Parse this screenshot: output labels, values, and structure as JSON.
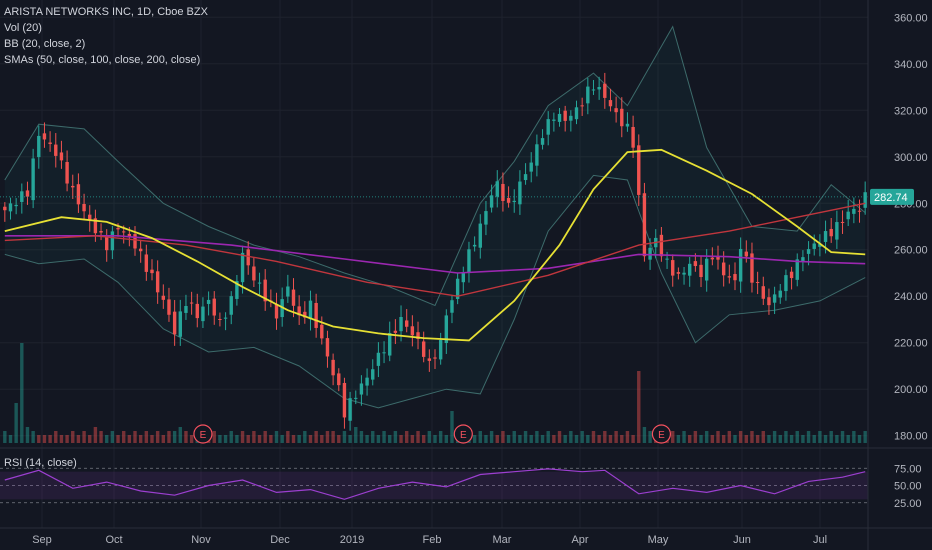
{
  "header": {
    "title": "ARISTA NETWORKS INC, 1D, Cboe BZX",
    "indicators": [
      "Vol (20)",
      "BB (20, close, 2)",
      "SMAs (50, close, 100, close, 200, close)"
    ]
  },
  "rsi": {
    "label": "RSI (14, close)",
    "ticks": [
      "75.00",
      "50.00",
      "25.00"
    ]
  },
  "colors": {
    "background": "#131722",
    "up": "#26a69a",
    "down": "#ef5350",
    "sma50": "#e6e034",
    "sma100": "#c0363d",
    "sma200": "#9b27b0",
    "bb": "#3d6b6b",
    "rsi": "#9c3fd0",
    "earnings": "#f7525f"
  },
  "chart_data": {
    "type": "candlestick",
    "title": "ARISTA NETWORKS INC, 1D, Cboe BZX",
    "x_tick_labels": [
      "Sep",
      "Oct",
      "Nov",
      "Dec",
      "2019",
      "Feb",
      "Mar",
      "Apr",
      "May",
      "Jun",
      "Jul"
    ],
    "y_tick_labels": [
      "360.00",
      "340.00",
      "320.00",
      "300.00",
      "280.00",
      "260.00",
      "240.00",
      "220.00",
      "200.00",
      "180.00"
    ],
    "ylim": [
      176,
      364
    ],
    "last_price": "282.74",
    "close_path": [
      [
        0,
        277
      ],
      [
        4,
        285
      ],
      [
        6,
        310
      ],
      [
        9,
        302
      ],
      [
        12,
        285
      ],
      [
        15,
        272
      ],
      [
        18,
        262
      ],
      [
        20,
        270
      ],
      [
        23,
        262
      ],
      [
        26,
        248
      ],
      [
        28,
        238
      ],
      [
        30,
        225
      ],
      [
        32,
        238
      ],
      [
        34,
        232
      ],
      [
        36,
        238
      ],
      [
        38,
        228
      ],
      [
        40,
        238
      ],
      [
        42,
        258
      ],
      [
        44,
        248
      ],
      [
        46,
        240
      ],
      [
        48,
        232
      ],
      [
        50,
        244
      ],
      [
        52,
        230
      ],
      [
        54,
        236
      ],
      [
        55,
        228
      ],
      [
        57,
        214
      ],
      [
        59,
        200
      ],
      [
        60,
        190
      ],
      [
        62,
        198
      ],
      [
        64,
        205
      ],
      [
        66,
        214
      ],
      [
        68,
        222
      ],
      [
        70,
        230
      ],
      [
        72,
        224
      ],
      [
        74,
        216
      ],
      [
        75,
        210
      ],
      [
        77,
        220
      ],
      [
        78,
        232
      ],
      [
        80,
        246
      ],
      [
        82,
        258
      ],
      [
        84,
        270
      ],
      [
        86,
        284
      ],
      [
        87,
        288
      ],
      [
        89,
        278
      ],
      [
        91,
        288
      ],
      [
        93,
        298
      ],
      [
        95,
        310
      ],
      [
        97,
        318
      ],
      [
        99,
        316
      ],
      [
        101,
        320
      ],
      [
        103,
        328
      ],
      [
        104,
        331
      ],
      [
        106,
        326
      ],
      [
        108,
        318
      ],
      [
        110,
        312
      ],
      [
        111,
        306
      ],
      [
        112,
        282
      ],
      [
        113,
        258
      ],
      [
        115,
        264
      ],
      [
        117,
        254
      ],
      [
        119,
        248
      ],
      [
        121,
        254
      ],
      [
        123,
        250
      ],
      [
        125,
        258
      ],
      [
        127,
        250
      ],
      [
        129,
        246
      ],
      [
        130,
        262
      ],
      [
        132,
        248
      ],
      [
        134,
        240
      ],
      [
        135,
        236
      ],
      [
        137,
        244
      ],
      [
        139,
        250
      ],
      [
        141,
        258
      ],
      [
        143,
        262
      ],
      [
        145,
        266
      ],
      [
        147,
        270
      ],
      [
        149,
        276
      ],
      [
        151,
        278
      ],
      [
        152,
        282.74
      ]
    ],
    "volume": [
      3,
      2,
      10,
      25,
      4,
      3,
      2,
      2,
      2,
      3,
      2,
      2,
      3,
      2,
      3,
      2,
      4,
      3,
      2,
      3,
      2,
      3,
      2,
      3,
      2,
      3,
      2,
      3,
      2,
      3,
      3,
      4,
      3,
      2,
      2,
      3,
      2,
      3,
      2,
      2,
      3,
      2,
      3,
      2,
      3,
      2,
      3,
      2,
      3,
      2,
      3,
      2,
      2,
      3,
      2,
      3,
      2,
      3,
      3,
      2,
      3,
      2,
      4,
      3,
      2,
      3,
      2,
      3,
      2,
      3,
      2,
      3,
      2,
      3,
      2,
      3,
      2,
      3,
      2,
      8,
      3,
      2,
      3,
      2,
      3,
      2,
      3,
      2,
      3,
      2,
      3,
      2,
      3,
      2,
      3,
      2,
      3,
      2,
      3,
      2,
      3,
      2,
      3,
      2,
      3,
      2,
      3,
      2,
      3,
      2,
      3,
      2,
      18,
      4,
      3,
      2,
      3,
      2,
      3,
      2,
      3,
      2,
      3,
      2,
      3,
      2,
      3,
      2,
      3,
      2,
      3,
      2,
      3,
      2,
      3,
      2,
      3,
      2,
      3,
      2,
      3,
      2,
      3,
      2,
      3,
      2,
      3,
      2,
      3,
      2,
      3,
      2,
      3
    ],
    "earnings_bars": [
      35,
      81,
      116
    ],
    "sma50_path": [
      [
        0,
        268
      ],
      [
        10,
        274
      ],
      [
        18,
        272
      ],
      [
        26,
        265
      ],
      [
        34,
        255
      ],
      [
        42,
        244
      ],
      [
        50,
        234
      ],
      [
        58,
        227
      ],
      [
        66,
        224
      ],
      [
        74,
        222
      ],
      [
        82,
        221
      ],
      [
        90,
        238
      ],
      [
        98,
        262
      ],
      [
        104,
        286
      ],
      [
        110,
        302
      ],
      [
        116,
        303
      ],
      [
        124,
        294
      ],
      [
        132,
        284
      ],
      [
        140,
        270
      ],
      [
        146,
        259
      ],
      [
        152,
        258
      ]
    ],
    "sma100_path": [
      [
        0,
        264
      ],
      [
        16,
        266
      ],
      [
        32,
        262
      ],
      [
        48,
        255
      ],
      [
        64,
        246
      ],
      [
        80,
        240
      ],
      [
        96,
        249
      ],
      [
        112,
        262
      ],
      [
        128,
        268
      ],
      [
        140,
        274
      ],
      [
        152,
        280
      ]
    ],
    "sma200_path": [
      [
        0,
        266
      ],
      [
        20,
        266
      ],
      [
        40,
        262
      ],
      [
        60,
        256
      ],
      [
        80,
        250
      ],
      [
        96,
        252
      ],
      [
        112,
        258
      ],
      [
        128,
        257
      ],
      [
        140,
        255
      ],
      [
        152,
        254
      ]
    ],
    "bb_upper": [
      [
        0,
        290
      ],
      [
        6,
        314
      ],
      [
        14,
        312
      ],
      [
        20,
        298
      ],
      [
        28,
        280
      ],
      [
        36,
        270
      ],
      [
        44,
        262
      ],
      [
        52,
        257
      ],
      [
        60,
        250
      ],
      [
        68,
        244
      ],
      [
        76,
        236
      ],
      [
        84,
        280
      ],
      [
        90,
        298
      ],
      [
        96,
        322
      ],
      [
        104,
        336
      ],
      [
        110,
        322
      ],
      [
        118,
        356
      ],
      [
        124,
        304
      ],
      [
        132,
        270
      ],
      [
        140,
        268
      ],
      [
        146,
        288
      ],
      [
        152,
        276
      ]
    ],
    "bb_lower": [
      [
        0,
        258
      ],
      [
        6,
        254
      ],
      [
        14,
        256
      ],
      [
        20,
        246
      ],
      [
        28,
        226
      ],
      [
        36,
        216
      ],
      [
        44,
        218
      ],
      [
        52,
        210
      ],
      [
        60,
        196
      ],
      [
        66,
        192
      ],
      [
        72,
        196
      ],
      [
        78,
        200
      ],
      [
        84,
        198
      ],
      [
        90,
        230
      ],
      [
        96,
        268
      ],
      [
        104,
        292
      ],
      [
        110,
        290
      ],
      [
        116,
        250
      ],
      [
        122,
        220
      ],
      [
        128,
        232
      ],
      [
        136,
        234
      ],
      [
        144,
        238
      ],
      [
        152,
        248
      ]
    ],
    "rsi_path": [
      [
        0,
        58
      ],
      [
        6,
        72
      ],
      [
        12,
        46
      ],
      [
        18,
        55
      ],
      [
        24,
        42
      ],
      [
        30,
        36
      ],
      [
        36,
        50
      ],
      [
        42,
        58
      ],
      [
        48,
        40
      ],
      [
        54,
        44
      ],
      [
        60,
        30
      ],
      [
        66,
        46
      ],
      [
        72,
        55
      ],
      [
        78,
        48
      ],
      [
        84,
        66
      ],
      [
        90,
        70
      ],
      [
        96,
        74
      ],
      [
        102,
        70
      ],
      [
        106,
        72
      ],
      [
        112,
        38
      ],
      [
        118,
        46
      ],
      [
        124,
        40
      ],
      [
        130,
        50
      ],
      [
        136,
        38
      ],
      [
        142,
        56
      ],
      [
        148,
        62
      ],
      [
        152,
        70
      ]
    ]
  }
}
